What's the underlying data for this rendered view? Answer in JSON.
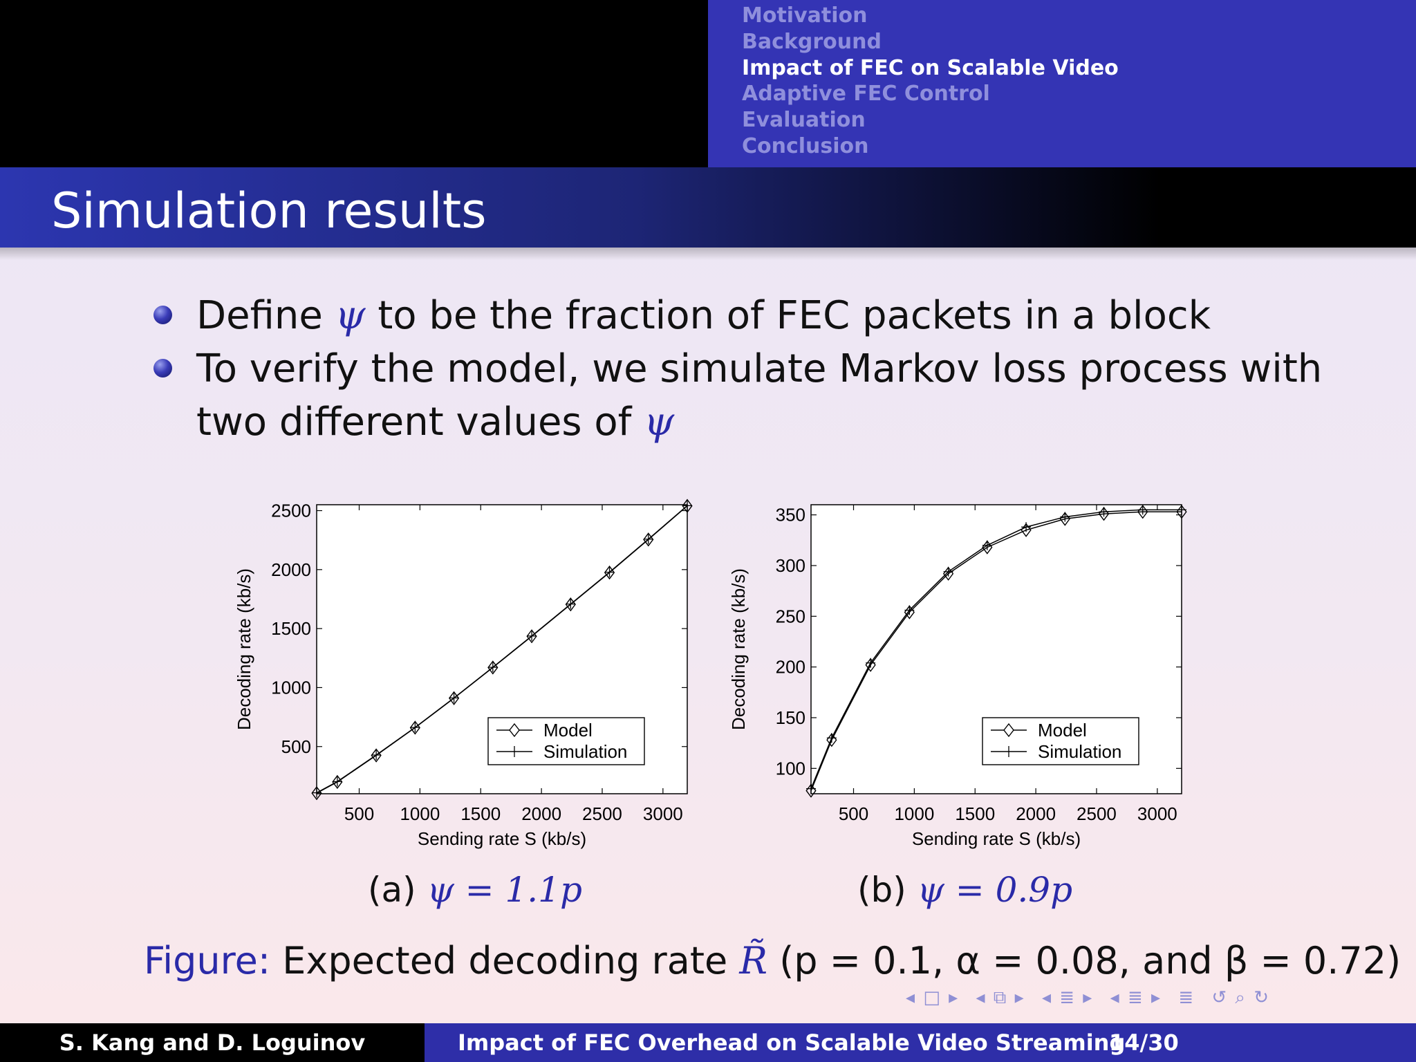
{
  "nav": {
    "sections": [
      "Motivation",
      "Background",
      "Impact of FEC on Scalable Video",
      "Adaptive FEC Control",
      "Evaluation",
      "Conclusion"
    ],
    "active_index": 2
  },
  "slide": {
    "title": "Simulation results",
    "bullets": [
      {
        "before": "Define",
        "symbol": "ψ",
        "after": "to be the fraction of FEC packets in a block"
      },
      {
        "line1": "To verify the model, we simulate Markov loss process with",
        "line2_before": "two different values of",
        "symbol": "ψ"
      }
    ]
  },
  "chart_data": [
    {
      "type": "line",
      "xlabel": "Sending rate S (kb/s)",
      "ylabel": "Decoding rate (kb/s)",
      "xlim": [
        150,
        3200
      ],
      "ylim": [
        100,
        2550
      ],
      "xticks": [
        500,
        1000,
        1500,
        2000,
        2500,
        3000
      ],
      "yticks": [
        500,
        1000,
        1500,
        2000,
        2500
      ],
      "legend_position": "bottom-right",
      "x": [
        150,
        320,
        640,
        960,
        1280,
        1600,
        1920,
        2240,
        2560,
        2880,
        3200
      ],
      "series": [
        {
          "name": "Model",
          "marker": "diamond",
          "values": [
            105,
            200,
            425,
            660,
            910,
            1170,
            1435,
            1705,
            1975,
            2255,
            2540
          ]
        },
        {
          "name": "Simulation",
          "marker": "plus",
          "values": [
            108,
            203,
            428,
            662,
            912,
            1172,
            1437,
            1708,
            1978,
            2258,
            2542
          ]
        }
      ]
    },
    {
      "type": "line",
      "xlabel": "Sending rate S (kb/s)",
      "ylabel": "Decoding rate (kb/s)",
      "xlim": [
        150,
        3200
      ],
      "ylim": [
        75,
        360
      ],
      "xticks": [
        500,
        1000,
        1500,
        2000,
        2500,
        3000
      ],
      "yticks": [
        100,
        150,
        200,
        250,
        300,
        350
      ],
      "legend_position": "bottom-right",
      "x": [
        150,
        320,
        640,
        960,
        1280,
        1600,
        1920,
        2240,
        2560,
        2880,
        3200
      ],
      "series": [
        {
          "name": "Model",
          "marker": "diamond",
          "values": [
            78,
            128,
            202,
            254,
            292,
            318,
            335,
            346,
            351,
            353,
            353
          ]
        },
        {
          "name": "Simulation",
          "marker": "plus",
          "values": [
            80,
            130,
            204,
            256,
            294,
            320,
            338,
            348,
            353,
            355,
            355
          ]
        }
      ]
    }
  ],
  "subcaptions": [
    {
      "label": "(a)",
      "math": "ψ = 1.1p"
    },
    {
      "label": "(b)",
      "math": "ψ = 0.9p"
    }
  ],
  "figure": {
    "label": "Figure:",
    "text": "Expected decoding rate",
    "symbol": "R̃",
    "params": "(p = 0.1, α = 0.08, and β = 0.72)"
  },
  "footer": {
    "authors": "S. Kang and D. Loguinov",
    "title": "Impact of FEC Overhead on Scalable Video Streaming",
    "page": "14/30"
  },
  "nav_controls": [
    "◂ □ ▸",
    "◂ ⧉ ▸",
    "◂ ≣ ▸",
    "◂ ≣ ▸",
    "≣",
    "↺ ⌕ ↻"
  ],
  "colors": {
    "title_bar": "#2c36b0",
    "nav_bar": "#3434b4",
    "accent": "#2a2aa8"
  }
}
